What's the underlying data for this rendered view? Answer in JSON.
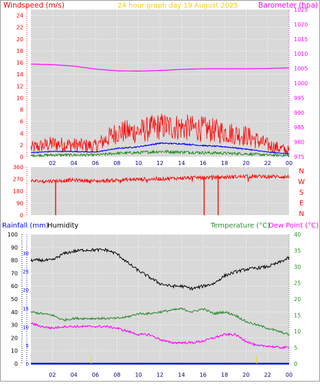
{
  "colors": {
    "windspeed": "#ff0000",
    "wind_avg": "#0000ff",
    "wind_gust_low": "#008000",
    "barometer": "#ff00ff",
    "direction": "#ff0000",
    "humidity": "#000000",
    "temperature": "#2e8b2e",
    "dewpoint": "#ff00ff",
    "rainfall": "#0000ff",
    "title": "#ffcc00",
    "plot_bg": "#d9d9d9",
    "grid": "#ffffff"
  },
  "chart_data": [
    {
      "type": "line",
      "title": "24 hour graph day   19 August 2025",
      "left_axis_label": "Windspeed (m/s)",
      "right_axis_label": "Barometer (hpa)",
      "x_ticks": [
        "02",
        "04",
        "06",
        "08",
        "10",
        "12",
        "14",
        "16",
        "18",
        "20",
        "22",
        "00"
      ],
      "y_left_ticks": [
        0,
        2,
        4,
        6,
        8,
        10,
        12,
        14,
        16,
        18,
        20,
        22,
        24
      ],
      "y_left_range": [
        0,
        25
      ],
      "y_right_ticks": [
        975,
        980,
        985,
        990,
        995,
        1000,
        1005,
        1010,
        1015,
        1020,
        1025
      ],
      "y_right_range": [
        975,
        1025
      ],
      "x_range_hours": [
        0,
        24
      ],
      "series": [
        {
          "key": "barometer",
          "axis": "right",
          "hours": [
            0,
            2,
            4,
            6,
            8,
            10,
            12,
            14,
            16,
            18,
            20,
            22,
            24
          ],
          "values": [
            1006.5,
            1006.3,
            1005.8,
            1004.8,
            1004.2,
            1004.1,
            1004.3,
            1004.7,
            1004.9,
            1004.9,
            1004.9,
            1005.0,
            1005.2
          ]
        },
        {
          "key": "windspeed",
          "axis": "left",
          "hours": [
            0,
            2,
            4,
            6,
            8,
            10,
            12,
            14,
            16,
            18,
            20,
            22,
            24
          ],
          "values": [
            1.5,
            2.2,
            2.0,
            1.8,
            4.2,
            4.3,
            5.2,
            5.0,
            4.7,
            4.2,
            3.6,
            2.0,
            1.0
          ]
        },
        {
          "key": "wind_avg",
          "axis": "left",
          "hours": [
            0,
            2,
            4,
            6,
            8,
            10,
            12,
            14,
            16,
            18,
            20,
            22,
            24
          ],
          "values": [
            0.7,
            0.9,
            0.9,
            0.8,
            1.4,
            1.7,
            2.3,
            2.2,
            1.9,
            1.7,
            1.3,
            0.8,
            0.5
          ]
        },
        {
          "key": "wind_gust_low",
          "axis": "left",
          "hours": [
            0,
            2,
            4,
            6,
            8,
            10,
            12,
            14,
            16,
            18,
            20,
            22,
            24
          ],
          "values": [
            0.2,
            0.3,
            0.3,
            0.3,
            0.6,
            0.7,
            0.9,
            0.8,
            0.7,
            0.6,
            0.5,
            0.3,
            0.2
          ]
        }
      ]
    },
    {
      "type": "scatter",
      "title": "",
      "direction_labels": [
        "N",
        "W",
        "S",
        "E",
        "N"
      ],
      "y_ticks": [
        0,
        90,
        180,
        270,
        360
      ],
      "y_range": [
        0,
        360
      ],
      "series": [
        {
          "key": "direction",
          "hours": [
            0,
            2,
            4,
            6,
            8,
            10,
            12,
            14,
            16,
            18,
            20,
            22,
            24
          ],
          "values": [
            255,
            255,
            262,
            255,
            262,
            268,
            272,
            278,
            282,
            285,
            290,
            290,
            287
          ],
          "spikes_hours": [
            2.3,
            16.1,
            17.4
          ]
        }
      ]
    },
    {
      "type": "line",
      "title": "",
      "rainfall_label": "Rainfall (mm)",
      "humidity_label": "Humidity",
      "temperature_label": "Temperature (°C)",
      "dewpoint_label": "Dew Point (°C)",
      "x_ticks": [
        "02",
        "04",
        "06",
        "08",
        "10",
        "12",
        "14",
        "16",
        "18",
        "20",
        "22",
        "00"
      ],
      "humidity_ticks": [
        0,
        10,
        20,
        30,
        40,
        50,
        60,
        70,
        80,
        90,
        100
      ],
      "humidity_range": [
        0,
        100
      ],
      "rainfall_ticks": [
        0,
        5,
        10,
        15,
        20,
        25,
        30
      ],
      "rainfall_range": [
        0,
        35
      ],
      "temperature_ticks": [
        0,
        5,
        10,
        15,
        20,
        25,
        30,
        35,
        40
      ],
      "temperature_range": [
        0,
        40
      ],
      "series": [
        {
          "key": "humidity",
          "axis": "humidity",
          "hours": [
            0,
            1,
            2,
            3,
            4,
            5,
            6,
            7,
            8,
            9,
            10,
            11,
            12,
            13,
            14,
            15,
            16,
            17,
            18,
            19,
            20,
            21,
            22,
            23,
            24
          ],
          "values": [
            80,
            80,
            80,
            85,
            87,
            88,
            88,
            88,
            85,
            78,
            72,
            67,
            62,
            60,
            60,
            58,
            60,
            62,
            68,
            71,
            73,
            74,
            75,
            78,
            82
          ]
        },
        {
          "key": "temperature",
          "axis": "temperature",
          "hours": [
            0,
            1,
            2,
            3,
            4,
            5,
            6,
            7,
            8,
            9,
            10,
            11,
            12,
            13,
            14,
            15,
            16,
            17,
            18,
            19,
            20,
            21,
            22,
            23,
            24
          ],
          "values": [
            16,
            15.5,
            15,
            13.5,
            14,
            14,
            14,
            14,
            14,
            14.5,
            15.5,
            15.5,
            16,
            16.5,
            17,
            16,
            17,
            15.5,
            16,
            15,
            13,
            12,
            11,
            10,
            9
          ]
        },
        {
          "key": "dewpoint",
          "axis": "temperature",
          "hours": [
            0,
            1,
            2,
            3,
            4,
            5,
            6,
            7,
            8,
            9,
            10,
            11,
            12,
            13,
            14,
            15,
            16,
            17,
            18,
            19,
            20,
            21,
            22,
            23,
            24
          ],
          "values": [
            12.5,
            11.5,
            11,
            11.5,
            11.5,
            11.5,
            11.5,
            11.5,
            11,
            10,
            9,
            9,
            7.5,
            6.5,
            6.5,
            6.5,
            7,
            8,
            9,
            9,
            7,
            5.5,
            5.5,
            5,
            5
          ]
        },
        {
          "key": "rainfall",
          "axis": "rainfall",
          "hours": [
            0,
            24
          ],
          "values": [
            0,
            0
          ],
          "markers_hours": [
            5.6,
            21.0
          ]
        }
      ]
    }
  ]
}
